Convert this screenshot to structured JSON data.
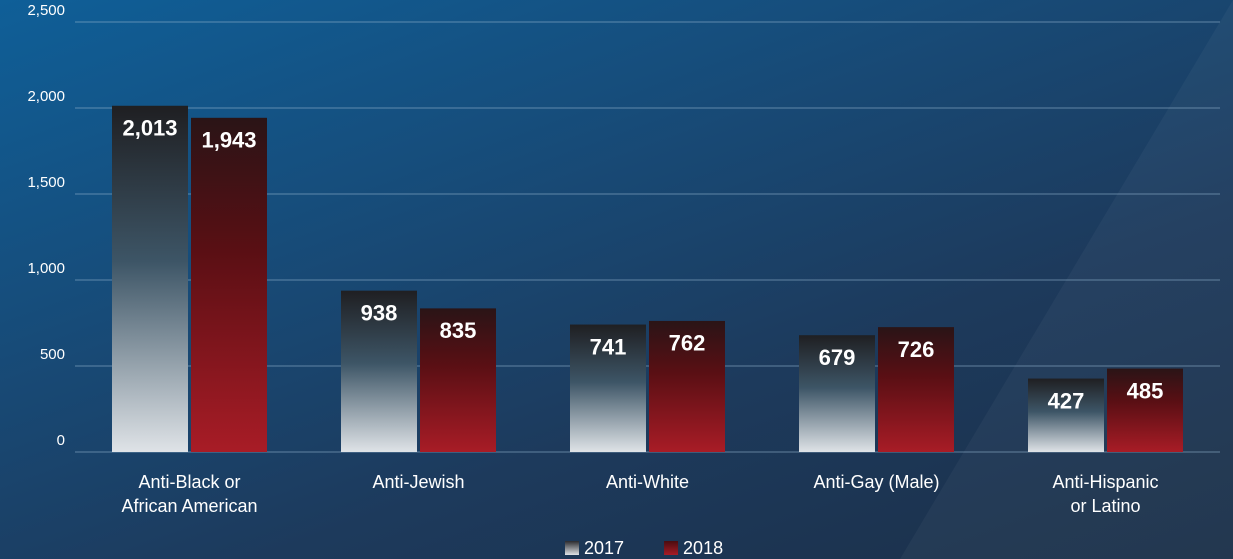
{
  "chart_data": {
    "type": "bar",
    "categories": [
      "Anti-Black or\nAfrican American",
      "Anti-Jewish",
      "Anti-White",
      "Anti-Gay (Male)",
      "Anti-Hispanic\nor Latino"
    ],
    "series": [
      {
        "name": "2017",
        "color": "#dfe3e7",
        "values": [
          2013,
          938,
          741,
          679,
          427
        ],
        "value_labels": [
          "2,013",
          "938",
          "741",
          "679",
          "427"
        ]
      },
      {
        "name": "2018",
        "color": "#a81c26",
        "values": [
          1943,
          835,
          762,
          726,
          485
        ],
        "value_labels": [
          "1,943",
          "835",
          "762",
          "726",
          "485"
        ]
      }
    ],
    "ylim": [
      0,
      2500
    ],
    "yticks": [
      0,
      500,
      {
        "value": 1000,
        "label": "1,000"
      },
      {
        "value": 1500,
        "label": "1,500"
      },
      {
        "value": 2000,
        "label": "2,000"
      },
      {
        "value": 2500,
        "label": "2,500"
      }
    ],
    "grid": true,
    "legend": "bottom"
  }
}
